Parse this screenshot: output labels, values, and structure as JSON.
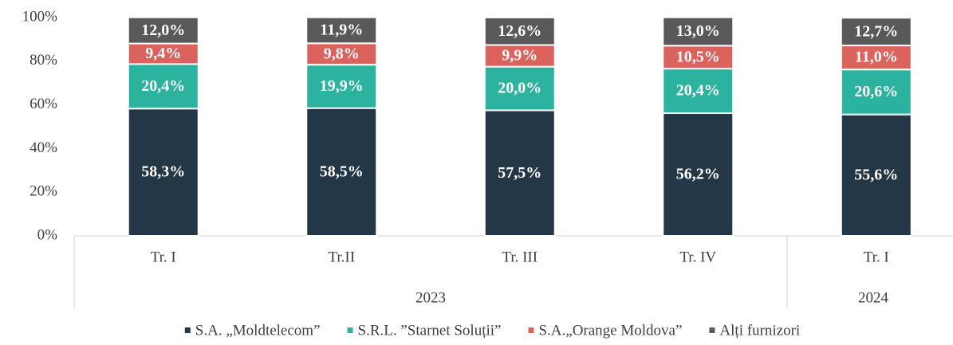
{
  "chart_data": {
    "type": "stacked_bar",
    "groups": [
      {
        "name": "2023",
        "categories": [
          "Tr. I",
          "Tr.II",
          "Tr. III",
          "Tr. IV"
        ]
      },
      {
        "name": "2024",
        "categories": [
          "Tr. I"
        ]
      }
    ],
    "series": [
      {
        "name": "S.A. „Moldtelecom”",
        "color": "#243746",
        "values": [
          58.3,
          58.5,
          57.5,
          56.2,
          55.6
        ],
        "value_labels": [
          "58,3%",
          "58,5%",
          "57,5%",
          "56,2%",
          "55,6%"
        ]
      },
      {
        "name": "S.R.L. ”Starnet Soluții”",
        "color": "#2cb39f",
        "values": [
          20.4,
          19.9,
          20.0,
          20.4,
          20.6
        ],
        "value_labels": [
          "20,4%",
          "19,9%",
          "20,0%",
          "20,4%",
          "20,6%"
        ]
      },
      {
        "name": "S.A.„Orange Moldova”",
        "color": "#dc625e",
        "values": [
          9.4,
          9.8,
          9.9,
          10.5,
          11.0
        ],
        "value_labels": [
          "9,4%",
          "9,8%",
          "9,9%",
          "10,5%",
          "11,0%"
        ]
      },
      {
        "name": "Alți furnizori",
        "color": "#595959",
        "values": [
          12.0,
          11.9,
          12.6,
          13.0,
          12.7
        ],
        "value_labels": [
          "12,0%",
          "11,9%",
          "12,6%",
          "13,0%",
          "12,7%"
        ]
      }
    ],
    "ylim": [
      0,
      100
    ],
    "yticks": [
      {
        "value": 0,
        "label": "0%"
      },
      {
        "value": 20,
        "label": "20%"
      },
      {
        "value": 40,
        "label": "40%"
      },
      {
        "value": 60,
        "label": "60%"
      },
      {
        "value": 80,
        "label": "80%"
      },
      {
        "value": 100,
        "label": "100%"
      }
    ],
    "legend": "bottom"
  }
}
